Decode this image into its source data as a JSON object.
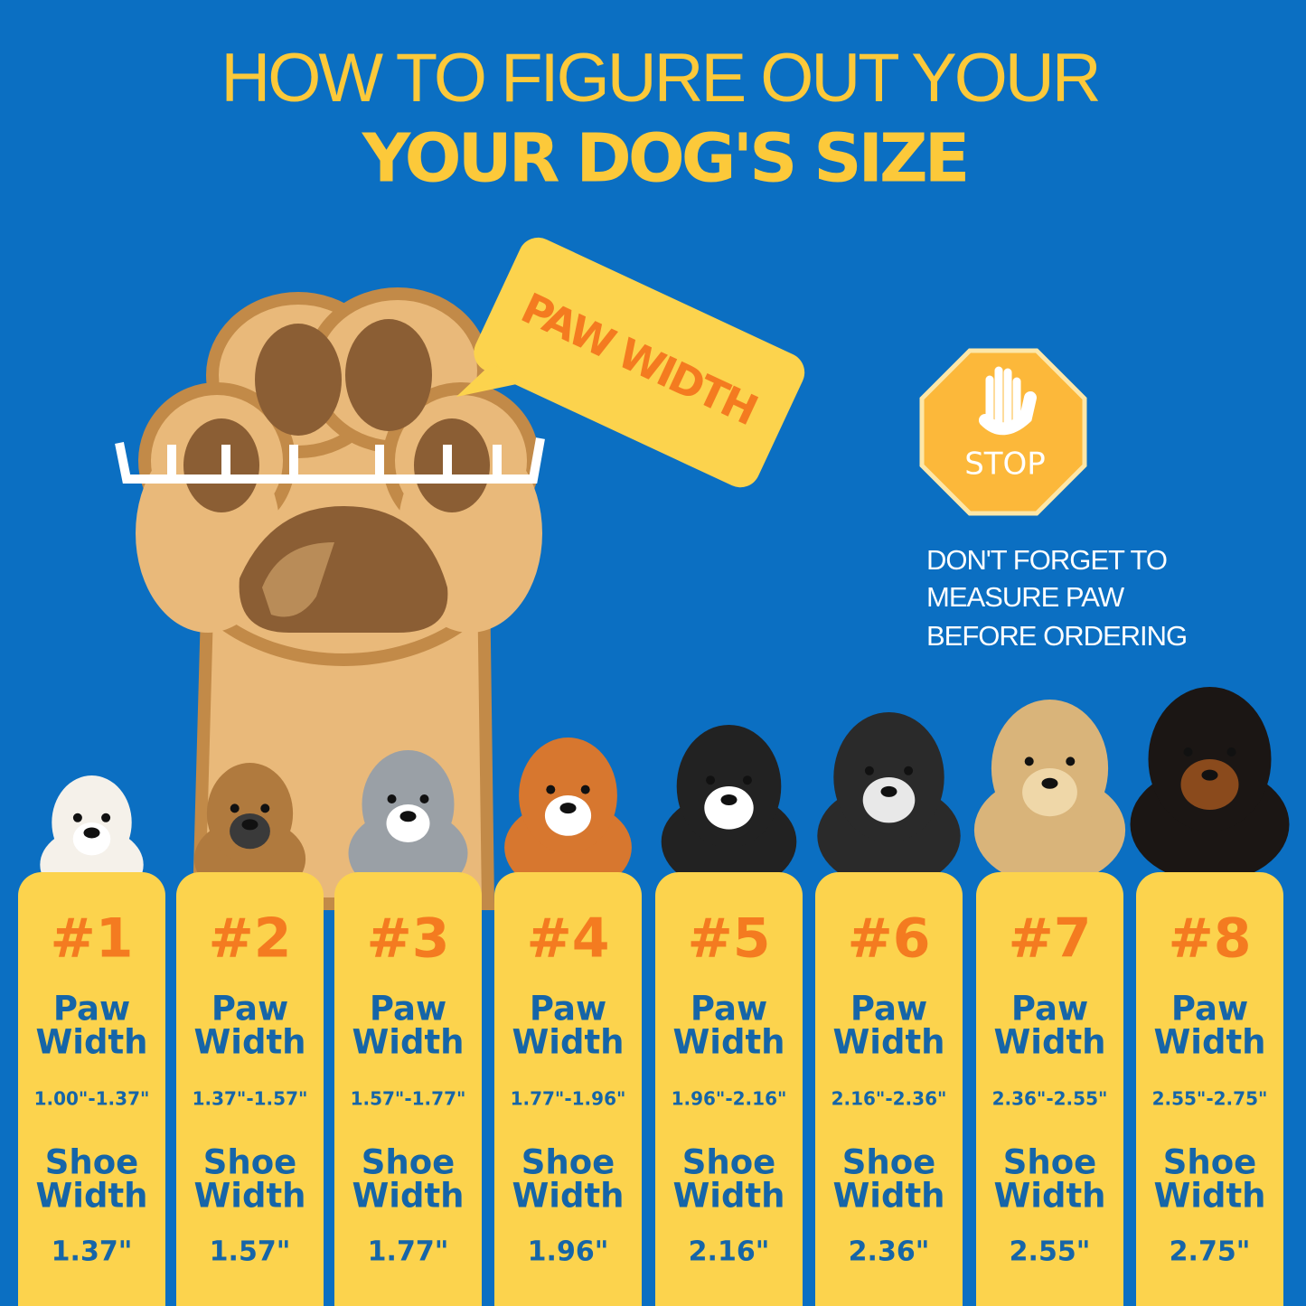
{
  "header": {
    "line1": "HOW TO FIGURE OUT YOUR",
    "line2": "YOUR DOG'S SIZE"
  },
  "paw_label": "PAW WIDTH",
  "stop_sign": "STOP",
  "note": [
    "DON'T FORGET TO",
    "MEASURE PAW",
    "BEFORE ORDERING"
  ],
  "sizes": [
    {
      "number": "#1",
      "paw_label": [
        "Paw",
        "Width"
      ],
      "paw_width": "1.00\"-1.37\"",
      "shoe_label": [
        "Shoe",
        "Width"
      ],
      "shoe_width": "1.37\""
    },
    {
      "number": "#2",
      "paw_label": [
        "Paw",
        "Width"
      ],
      "paw_width": "1.37\"-1.57\"",
      "shoe_label": [
        "Shoe",
        "Width"
      ],
      "shoe_width": "1.57\""
    },
    {
      "number": "#3",
      "paw_label": [
        "Paw",
        "Width"
      ],
      "paw_width": "1.57\"-1.77\"",
      "shoe_label": [
        "Shoe",
        "Width"
      ],
      "shoe_width": "1.77\""
    },
    {
      "number": "#4",
      "paw_label": [
        "Paw",
        "Width"
      ],
      "paw_width": "1.77\"-1.96\"",
      "shoe_label": [
        "Shoe",
        "Width"
      ],
      "shoe_width": "1.96\""
    },
    {
      "number": "#5",
      "paw_label": [
        "Paw",
        "Width"
      ],
      "paw_width": "1.96\"-2.16\"",
      "shoe_label": [
        "Shoe",
        "Width"
      ],
      "shoe_width": "2.16\""
    },
    {
      "number": "#6",
      "paw_label": [
        "Paw",
        "Width"
      ],
      "paw_width": "2.16\"-2.36\"",
      "shoe_label": [
        "Shoe",
        "Width"
      ],
      "shoe_width": "2.36\""
    },
    {
      "number": "#7",
      "paw_label": [
        "Paw",
        "Width"
      ],
      "paw_width": "2.36\"-2.55\"",
      "shoe_label": [
        "Shoe",
        "Width"
      ],
      "shoe_width": "2.55\""
    },
    {
      "number": "#8",
      "paw_label": [
        "Paw",
        "Width"
      ],
      "paw_width": "2.55\"-2.75\"",
      "shoe_label": [
        "Shoe",
        "Width"
      ],
      "shoe_width": "2.75\""
    }
  ]
}
